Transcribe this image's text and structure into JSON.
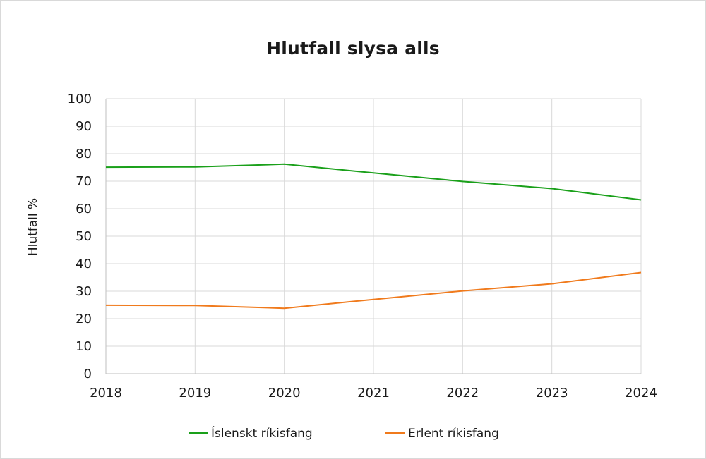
{
  "chart_data": {
    "type": "line",
    "title": "Hlutfall slysa alls",
    "xlabel": "",
    "ylabel": "Hlutfall %",
    "x": [
      "2018",
      "2019",
      "2020",
      "2021",
      "2022",
      "2023",
      "2024"
    ],
    "ylim": [
      0,
      100
    ],
    "yticks": [
      0,
      10,
      20,
      30,
      40,
      50,
      60,
      70,
      80,
      90,
      100
    ],
    "grid": true,
    "legend": "bottom",
    "series": [
      {
        "name": "Íslenskt ríkisfang",
        "color": "#1aa01a",
        "values": [
          75.1,
          75.2,
          76.2,
          73.0,
          69.9,
          67.3,
          63.2
        ]
      },
      {
        "name": "Erlent ríkisfang",
        "color": "#f07a1c",
        "values": [
          24.9,
          24.8,
          23.8,
          27.0,
          30.1,
          32.7,
          36.8
        ]
      }
    ]
  }
}
